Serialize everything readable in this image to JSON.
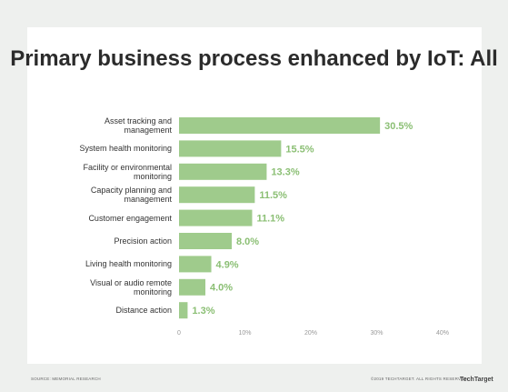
{
  "chart_data": {
    "type": "bar",
    "orientation": "horizontal",
    "title": "Primary business process enhanced by IoT: All",
    "categories": [
      "Asset tracking and management",
      "System health monitoring",
      "Facility or environmental monitoring",
      "Capacity planning and management",
      "Customer engagement",
      "Precision action",
      "Living health monitoring",
      "Visual or audio remote monitoring",
      "Distance action"
    ],
    "values": [
      30.5,
      15.5,
      13.3,
      11.5,
      11.1,
      8.0,
      4.9,
      4.0,
      1.3
    ],
    "value_labels": [
      "30.5%",
      "15.5%",
      "13.3%",
      "11.5%",
      "11.1%",
      "8.0%",
      "4.9%",
      "4.0%",
      "1.3%"
    ],
    "color": "#9fcb8c",
    "label_color": "#8bbf74",
    "xlim": [
      0,
      40
    ],
    "xticks": [
      0,
      {
        "value": 10,
        "label": "10%"
      },
      {
        "value": 20,
        "label": "20%"
      },
      {
        "value": 30,
        "label": "30%"
      },
      {
        "value": 40,
        "label": "40%"
      }
    ],
    "grid": false,
    "source": "SOURCE: MEMORIAL RESEARCH",
    "copyright": "©2019 TECHTARGET. ALL RIGHTS RESERVED",
    "logo": "TechTarget"
  }
}
